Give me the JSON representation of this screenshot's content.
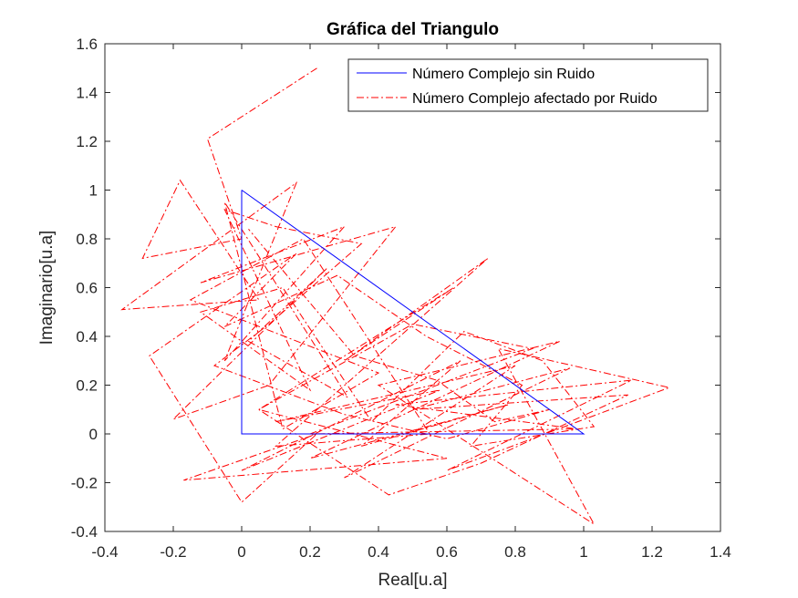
{
  "chart_data": {
    "type": "line",
    "title": "Gráfica del Triangulo",
    "xlabel": "Real[u.a]",
    "ylabel": "Imaginario[u.a]",
    "xlim": [
      -0.4,
      1.4
    ],
    "ylim": [
      -0.4,
      1.6
    ],
    "xticks": [
      "-0.4",
      "-0.2",
      "0",
      "0.2",
      "0.4",
      "0.6",
      "0.8",
      "1",
      "1.2",
      "1.4"
    ],
    "yticks": [
      "-0.4",
      "-0.2",
      "0",
      "0.2",
      "0.4",
      "0.6",
      "0.8",
      "1",
      "1.2",
      "1.4",
      "1.6"
    ],
    "grid": false,
    "legend_position": "top-right",
    "series": [
      {
        "name": "Número Complejo sin Ruido",
        "color": "#0000ff",
        "style": "solid",
        "x": [
          0,
          1,
          0,
          0
        ],
        "y": [
          1,
          0,
          0,
          1
        ]
      },
      {
        "name": "Número Complejo afectado por Ruido",
        "color": "#ff0000",
        "style": "dashdot",
        "x": [
          0.22,
          -0.1,
          0.0,
          -0.29,
          -0.18,
          0.05,
          -0.35,
          0.16,
          -0.05,
          0.3,
          -0.12,
          0.45,
          0.08,
          -0.2,
          0.25,
          0.02,
          0.31,
          -0.05,
          0.12,
          0.4,
          -0.15,
          0.18,
          0.55,
          0.1,
          0.72,
          0.3,
          0.62,
          0.05,
          0.5,
          0.85,
          0.2,
          0.98,
          0.45,
          1.14,
          0.6,
          1.25,
          0.75,
          1.03,
          0.4,
          0.93,
          0.2,
          0.78,
          0.35,
          0.64,
          0.0,
          0.58,
          0.1,
          0.8,
          0.3,
          0.96,
          0.5,
          1.13,
          0.7,
          0.43,
          0.05,
          0.6,
          -0.17,
          0.22,
          0.0,
          -0.27,
          0.16,
          -0.05,
          0.28,
          0.54,
          0.82,
          0.67,
          1.03,
          0.88,
          0.65,
          0.38,
          0.12,
          -0.12,
          0.2,
          -0.05,
          0.1,
          0.35,
          0.08,
          -0.08,
          0.3,
          0.6,
          0.9,
          0.74,
          0.57,
          0.33,
          0.15,
          0.02
        ],
        "y": [
          1.5,
          1.21,
          0.8,
          0.72,
          1.04,
          0.55,
          0.51,
          1.03,
          0.3,
          0.85,
          0.62,
          0.85,
          0.2,
          0.06,
          0.68,
          0.38,
          0.15,
          0.95,
          0.02,
          0.25,
          0.55,
          0.8,
          0.0,
          -0.05,
          0.72,
          0.3,
          0.6,
          0.1,
          0.45,
          0.35,
          0.0,
          0.02,
          0.12,
          0.22,
          -0.15,
          0.19,
          0.35,
          -0.37,
          0.2,
          0.38,
          -0.1,
          0.12,
          -0.05,
          0.3,
          -0.15,
          0.18,
          0.05,
          0.28,
          -0.18,
          0.27,
          0.1,
          0.16,
          -0.12,
          -0.25,
          0.1,
          -0.1,
          -0.19,
          0.0,
          -0.28,
          0.32,
          0.74,
          0.44,
          0.65,
          0.4,
          0.2,
          -0.05,
          0.03,
          0.3,
          0.42,
          0.05,
          0.6,
          0.5,
          0.18,
          0.92,
          0.85,
          0.78,
          0.45,
          0.28,
          0.08,
          -0.02,
          0.1,
          0.05,
          0.22,
          0.32,
          0.62,
          0.84
        ]
      }
    ]
  }
}
